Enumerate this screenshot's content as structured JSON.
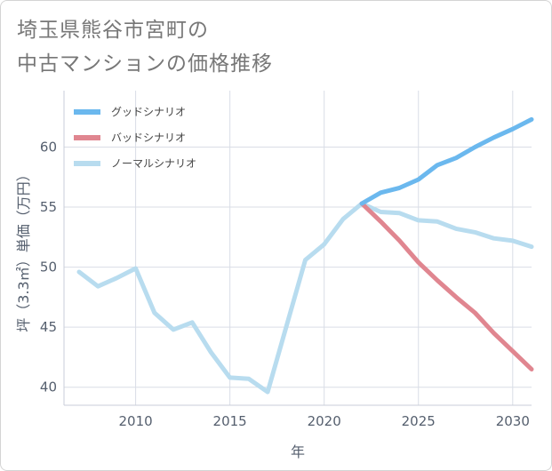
{
  "title": {
    "line1": "埼玉県熊谷市宮町の",
    "line2": "中古マンションの価格推移"
  },
  "chart_data": {
    "type": "line",
    "xlabel": "年",
    "ylabel": "坪（3.3㎡）単価（万円）",
    "xlim": [
      2006.2,
      2031
    ],
    "ylim": [
      38.5,
      64.7
    ],
    "x_ticks": [
      2010,
      2015,
      2020,
      2025,
      2030
    ],
    "y_ticks": [
      40,
      45,
      50,
      55,
      60
    ],
    "grid": true,
    "legend_position": "top-left",
    "series": [
      {
        "name": "グッドシナリオ",
        "color": "#6bb8ee",
        "x": [
          2022,
          2023,
          2024,
          2025,
          2026,
          2027,
          2028,
          2029,
          2030,
          2031
        ],
        "y": [
          55.3,
          56.2,
          56.6,
          57.3,
          58.5,
          59.1,
          60.0,
          60.8,
          61.5,
          62.3
        ]
      },
      {
        "name": "バッドシナリオ",
        "color": "#e08690",
        "x": [
          2022,
          2023,
          2024,
          2025,
          2026,
          2027,
          2028,
          2029,
          2030,
          2031
        ],
        "y": [
          55.3,
          53.8,
          52.2,
          50.4,
          48.9,
          47.5,
          46.2,
          44.5,
          43.0,
          41.5
        ]
      },
      {
        "name": "ノーマルシナリオ",
        "color": "#b8dcef",
        "x": [
          2007,
          2008,
          2009,
          2010,
          2011,
          2012,
          2013,
          2014,
          2015,
          2016,
          2017,
          2018,
          2019,
          2020,
          2021,
          2022,
          2023,
          2024,
          2025,
          2026,
          2027,
          2028,
          2029,
          2030,
          2031
        ],
        "y": [
          49.6,
          48.4,
          49.1,
          49.9,
          46.2,
          44.8,
          45.4,
          42.9,
          40.8,
          40.7,
          39.6,
          45.1,
          50.6,
          51.9,
          54.0,
          55.3,
          54.6,
          54.5,
          53.9,
          53.8,
          53.2,
          52.9,
          52.4,
          52.2,
          51.7
        ]
      }
    ]
  }
}
